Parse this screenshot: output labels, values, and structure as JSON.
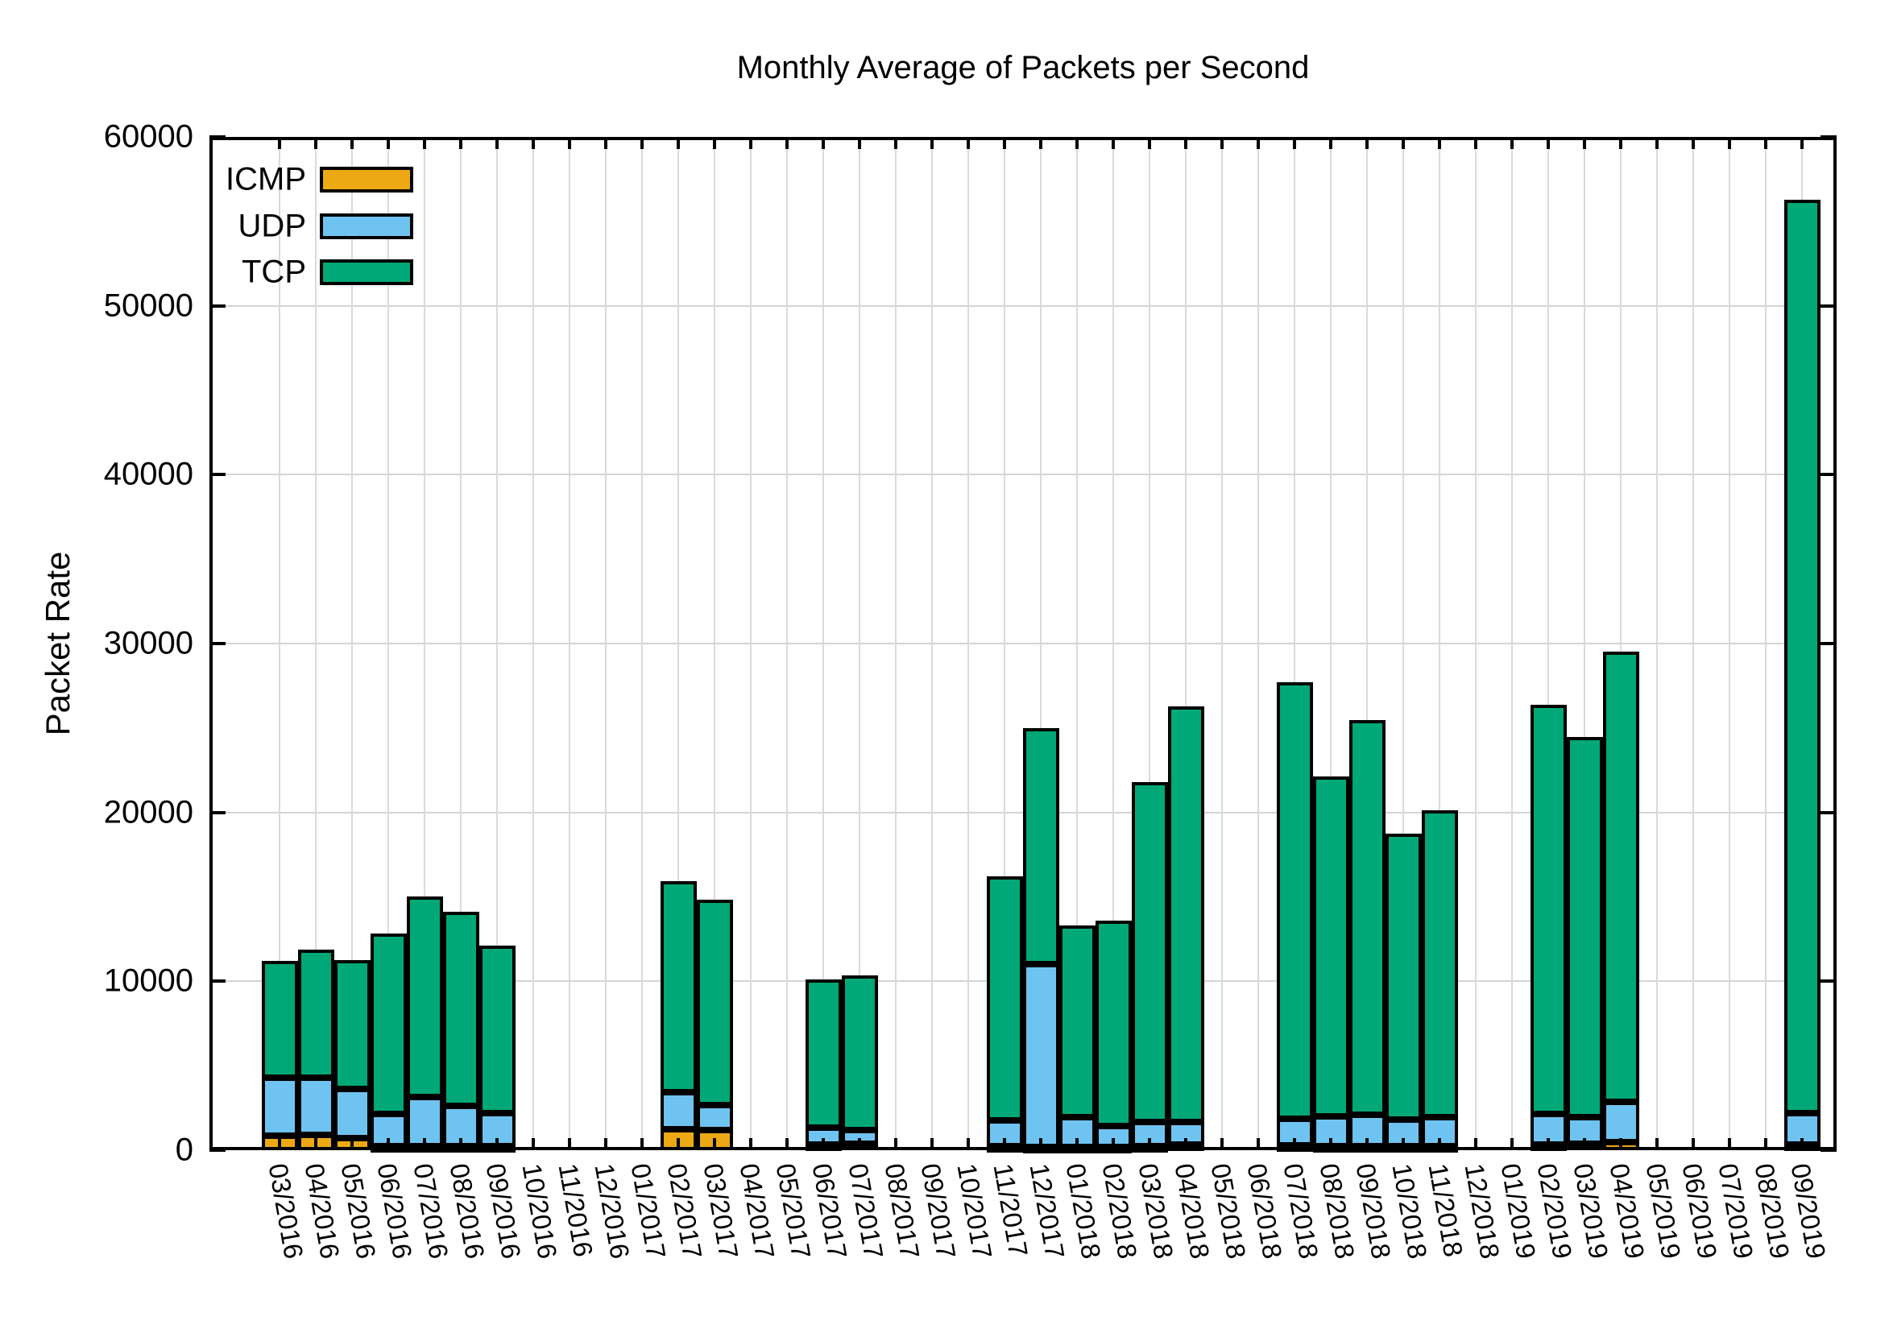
{
  "title": "Monthly Average of Packets per Second",
  "y_axis": {
    "label": "Packet Rate",
    "ticks": [
      0,
      10000,
      20000,
      30000,
      40000,
      50000,
      60000
    ],
    "max": 60000
  },
  "legend": {
    "entries": [
      "ICMP",
      "UDP",
      "TCP"
    ],
    "position": "top-left"
  },
  "colors": {
    "icmp": "#EDA913",
    "udp": "#6FC3F0",
    "tcp": "#00A877",
    "bar_outline": "#000000",
    "grid": "#d6d6d6"
  },
  "chart_data": {
    "type": "bar",
    "stacked": true,
    "title": "Monthly Average of Packets per Second",
    "xlabel": "",
    "ylabel": "Packet Rate",
    "ylim": [
      0,
      60000
    ],
    "grid": true,
    "legend_position": "top-left",
    "categories": [
      "03/2016",
      "04/2016",
      "05/2016",
      "06/2016",
      "07/2016",
      "08/2016",
      "09/2016",
      "10/2016",
      "11/2016",
      "12/2016",
      "01/2017",
      "02/2017",
      "03/2017",
      "04/2017",
      "05/2017",
      "06/2017",
      "07/2017",
      "08/2017",
      "09/2017",
      "10/2017",
      "11/2017",
      "12/2017",
      "01/2018",
      "02/2018",
      "03/2018",
      "04/2018",
      "05/2018",
      "06/2018",
      "07/2018",
      "08/2018",
      "09/2018",
      "10/2018",
      "11/2018",
      "12/2018",
      "01/2019",
      "02/2019",
      "03/2019",
      "04/2019",
      "05/2019",
      "06/2019",
      "07/2019",
      "08/2019",
      "09/2019"
    ],
    "series": [
      {
        "name": "ICMP",
        "color": "#EDA913",
        "values": [
          860,
          900,
          720,
          240,
          240,
          240,
          240,
          0,
          0,
          0,
          0,
          1250,
          1200,
          0,
          0,
          340,
          400,
          0,
          0,
          0,
          240,
          190,
          190,
          190,
          240,
          340,
          0,
          0,
          290,
          240,
          240,
          240,
          240,
          0,
          0,
          340,
          380,
          480,
          0,
          0,
          0,
          0,
          340
        ]
      },
      {
        "name": "UDP",
        "color": "#6FC3F0",
        "values": [
          3450,
          3400,
          2920,
          1920,
          2920,
          2390,
          1960,
          0,
          0,
          0,
          0,
          2200,
          1480,
          0,
          0,
          1000,
          800,
          0,
          0,
          0,
          1530,
          10830,
          1770,
          1250,
          1440,
          1340,
          0,
          0,
          1580,
          1770,
          1870,
          1580,
          1720,
          0,
          0,
          1820,
          1580,
          2390,
          0,
          0,
          0,
          0,
          1860
        ]
      },
      {
        "name": "TCP",
        "color": "#00A877",
        "values": [
          6900,
          7580,
          7620,
          10680,
          11880,
          11500,
          9920,
          0,
          0,
          0,
          0,
          12500,
          12170,
          0,
          0,
          8770,
          9150,
          0,
          0,
          0,
          14470,
          13980,
          11360,
          12160,
          20110,
          24620,
          0,
          0,
          25860,
          20120,
          23370,
          16910,
          18160,
          0,
          0,
          24230,
          22520,
          26640,
          0,
          0,
          0,
          0,
          54080
        ]
      }
    ]
  }
}
